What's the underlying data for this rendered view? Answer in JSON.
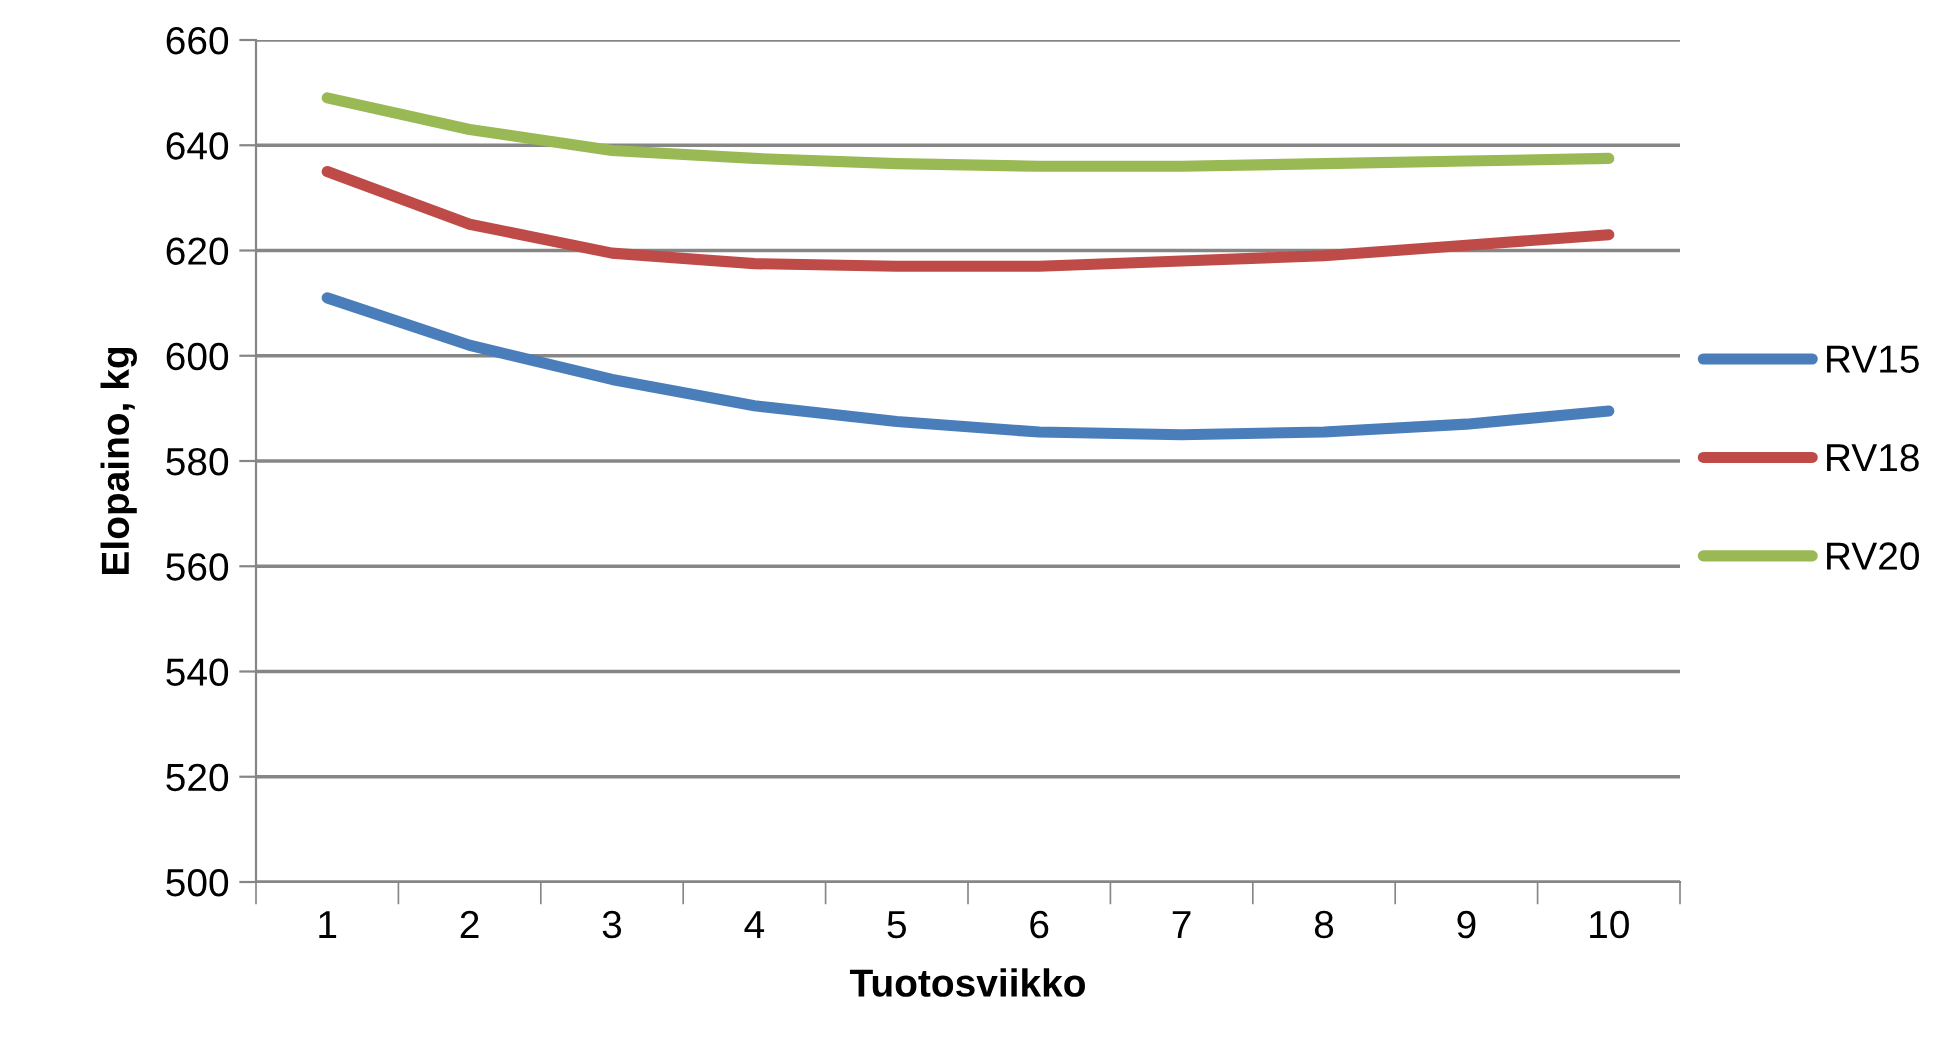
{
  "chart_data": {
    "type": "line",
    "xlabel": "Tuotosviikko",
    "ylabel": "Elopaino, kg",
    "categories": [
      "1",
      "2",
      "3",
      "4",
      "5",
      "6",
      "7",
      "8",
      "9",
      "10"
    ],
    "series": [
      {
        "name": "RV15",
        "color": "#4a7ebb",
        "values": [
          611,
          602,
          595.5,
          590.5,
          587.5,
          585.5,
          585,
          585.5,
          587,
          589.5
        ]
      },
      {
        "name": "RV18",
        "color": "#be4b48",
        "values": [
          635,
          625,
          619.5,
          617.5,
          617,
          617,
          618,
          619,
          621,
          623
        ]
      },
      {
        "name": "RV20",
        "color": "#98b954",
        "values": [
          649,
          643,
          639,
          637.5,
          636.5,
          636,
          636,
          636.5,
          637,
          637.5
        ]
      }
    ],
    "ylim": [
      500,
      660
    ],
    "yticks": [
      500,
      520,
      540,
      560,
      580,
      600,
      620,
      640,
      660
    ],
    "grid": "y",
    "legend": "right",
    "marker": "none",
    "line_style": "solid"
  }
}
